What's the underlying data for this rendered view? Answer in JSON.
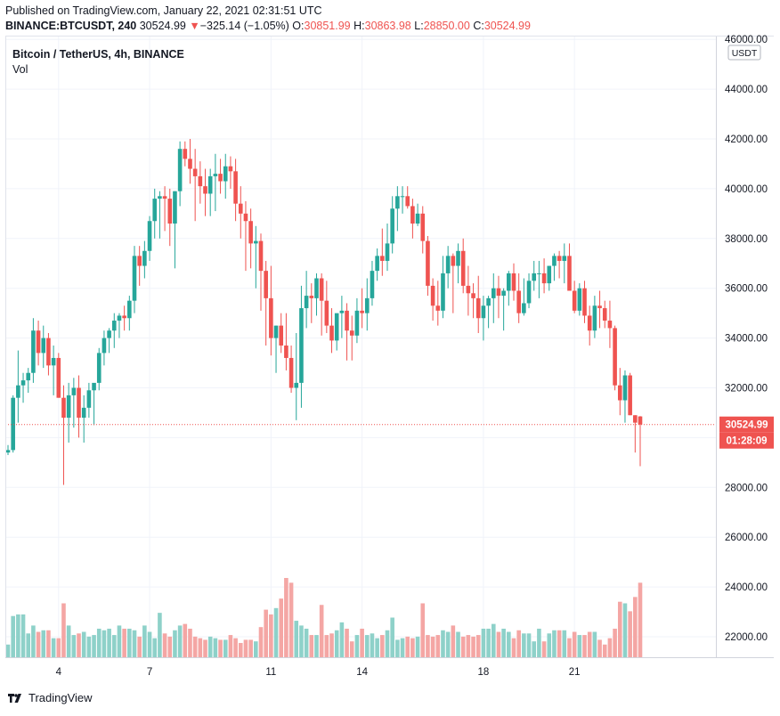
{
  "header": {
    "published": "Published on TradingView.com, January 22, 2021 02:31:51 UTC",
    "symbol": "BINANCE:BTCUSDT, 240",
    "last": "30524.99",
    "change_arrow": "▼",
    "change": "−325.14 (−1.05%)",
    "o_label": "O:",
    "o_value": "30851.99",
    "h_label": "H:",
    "h_value": "30863.98",
    "l_label": "L:",
    "l_value": "28850.00",
    "c_label": "C:",
    "c_value": "30524.99"
  },
  "legend": {
    "title": "Bitcoin / TetherUS, 4h, BINANCE",
    "vol_label": "Vol"
  },
  "price_axis": {
    "currency": "USDT",
    "last_price": "30524.99",
    "countdown": "01:28:09"
  },
  "branding": {
    "name": "TradingView",
    "logo_icon": "tradingview-logo-icon"
  },
  "colors": {
    "up": "#26a69a",
    "down": "#ef5350",
    "vol_up": "#8ed1c9",
    "vol_down": "#f4a6a4"
  },
  "chart_data": {
    "type": "candlestick",
    "symbol": "BTCUSDT",
    "interval": "4h",
    "ylim": [
      21000,
      46000
    ],
    "y_ticks": [
      22000,
      24000,
      26000,
      28000,
      30000,
      32000,
      34000,
      36000,
      38000,
      40000,
      42000,
      44000,
      46000
    ],
    "y_tick_labels": [
      "22000.00",
      "24000.00",
      "26000.00",
      "28000.00",
      "30000.00",
      "32000.00",
      "34000.00",
      "36000.00",
      "38000.00",
      "40000.00",
      "42000.00",
      "44000.00",
      "46000.00"
    ],
    "x_tick_labels": [
      {
        "label": "4",
        "candle_index": 10
      },
      {
        "label": "7",
        "candle_index": 28
      },
      {
        "label": "11",
        "candle_index": 52
      },
      {
        "label": "14",
        "candle_index": 70
      },
      {
        "label": "18",
        "candle_index": 94
      },
      {
        "label": "21",
        "candle_index": 112
      }
    ],
    "last_price": 30524.99,
    "grid": true,
    "volume_scale_max": 100,
    "candles": [
      [
        29400,
        29700,
        29300,
        29500,
        8
      ],
      [
        29500,
        31700,
        29400,
        31600,
        26
      ],
      [
        31600,
        33500,
        30600,
        32100,
        27
      ],
      [
        32100,
        32600,
        31400,
        32300,
        27
      ],
      [
        32300,
        32800,
        31800,
        32600,
        15
      ],
      [
        32600,
        34800,
        32200,
        34300,
        20
      ],
      [
        34300,
        34700,
        32900,
        33400,
        16
      ],
      [
        33400,
        34500,
        32800,
        34000,
        17
      ],
      [
        34000,
        34200,
        32500,
        32900,
        17
      ],
      [
        32900,
        33700,
        31700,
        33200,
        12
      ],
      [
        33200,
        33400,
        31600,
        31600,
        12
      ],
      [
        31600,
        32100,
        28100,
        30800,
        34
      ],
      [
        30800,
        32200,
        29800,
        31700,
        20
      ],
      [
        31700,
        32400,
        30400,
        32000,
        14
      ],
      [
        32000,
        32500,
        30000,
        30800,
        15
      ],
      [
        30800,
        31700,
        29800,
        31200,
        16
      ],
      [
        31200,
        32200,
        30800,
        31900,
        13
      ],
      [
        31900,
        32100,
        30500,
        32200,
        14
      ],
      [
        32200,
        33600,
        31900,
        33400,
        18
      ],
      [
        33400,
        34300,
        32900,
        34000,
        17
      ],
      [
        34000,
        34400,
        33400,
        34300,
        18
      ],
      [
        34300,
        35000,
        33600,
        34700,
        14
      ],
      [
        34700,
        35000,
        34000,
        34900,
        20
      ],
      [
        34900,
        35300,
        34300,
        34800,
        18
      ],
      [
        34800,
        35700,
        34300,
        35500,
        18
      ],
      [
        35500,
        37700,
        35000,
        37300,
        17
      ],
      [
        37300,
        37700,
        36100,
        36900,
        13
      ],
      [
        36900,
        37900,
        36400,
        37500,
        20
      ],
      [
        37500,
        38900,
        37100,
        38700,
        16
      ],
      [
        38700,
        40000,
        38000,
        39600,
        12
      ],
      [
        39600,
        39900,
        38000,
        39700,
        28
      ],
      [
        39700,
        40100,
        38300,
        39600,
        15
      ],
      [
        39600,
        40000,
        37700,
        38600,
        13
      ],
      [
        38600,
        39900,
        36800,
        39900,
        17
      ],
      [
        39900,
        41900,
        39300,
        41600,
        20
      ],
      [
        41600,
        41900,
        40900,
        41200,
        21
      ],
      [
        41200,
        42000,
        40200,
        40800,
        18
      ],
      [
        40800,
        41600,
        38700,
        40500,
        13
      ],
      [
        40500,
        41100,
        39400,
        40100,
        12
      ],
      [
        40100,
        40800,
        38900,
        39800,
        11
      ],
      [
        39800,
        40800,
        38900,
        40500,
        13
      ],
      [
        40500,
        41400,
        39100,
        40600,
        12
      ],
      [
        40600,
        41200,
        39800,
        40300,
        11
      ],
      [
        40300,
        41400,
        39600,
        40900,
        11
      ],
      [
        40900,
        41300,
        40000,
        40700,
        14
      ],
      [
        40700,
        41200,
        38700,
        39400,
        12
      ],
      [
        39400,
        40100,
        38000,
        39000,
        9
      ],
      [
        39000,
        39500,
        36700,
        38700,
        11
      ],
      [
        38700,
        39200,
        36800,
        37800,
        11
      ],
      [
        37800,
        38500,
        36000,
        37900,
        10
      ],
      [
        37900,
        38200,
        35100,
        36700,
        19
      ],
      [
        36700,
        37100,
        33700,
        35600,
        30
      ],
      [
        35600,
        36900,
        33300,
        34000,
        27
      ],
      [
        34000,
        34500,
        32600,
        34500,
        31
      ],
      [
        34500,
        35000,
        33400,
        33700,
        37
      ],
      [
        33700,
        35000,
        32700,
        33200,
        50
      ],
      [
        33200,
        33700,
        31800,
        32000,
        47
      ],
      [
        32000,
        34200,
        30700,
        32200,
        23
      ],
      [
        32200,
        36100,
        31200,
        35200,
        20
      ],
      [
        35200,
        36700,
        34400,
        35700,
        18
      ],
      [
        35700,
        36200,
        34600,
        35600,
        14
      ],
      [
        35600,
        36600,
        34900,
        36400,
        14
      ],
      [
        36400,
        36600,
        34100,
        35500,
        33
      ],
      [
        35500,
        36300,
        34200,
        34500,
        14
      ],
      [
        34500,
        35200,
        33400,
        33900,
        15
      ],
      [
        33900,
        34800,
        33500,
        35000,
        17
      ],
      [
        35000,
        35700,
        34000,
        35100,
        22
      ],
      [
        35100,
        35400,
        33100,
        34300,
        18
      ],
      [
        34300,
        34900,
        33100,
        34100,
        10
      ],
      [
        34100,
        35600,
        33800,
        35100,
        14
      ],
      [
        35100,
        36000,
        34400,
        35000,
        18
      ],
      [
        35000,
        36400,
        34300,
        35600,
        14
      ],
      [
        35600,
        37100,
        35300,
        36700,
        15
      ],
      [
        36700,
        37600,
        36300,
        37300,
        12
      ],
      [
        37300,
        38400,
        36500,
        37100,
        14
      ],
      [
        37100,
        38600,
        36700,
        37800,
        17
      ],
      [
        37800,
        39700,
        37400,
        39200,
        25
      ],
      [
        39200,
        40100,
        38300,
        39700,
        11
      ],
      [
        39700,
        40100,
        39000,
        39700,
        12
      ],
      [
        39700,
        40100,
        39200,
        39300,
        13
      ],
      [
        39300,
        39600,
        38000,
        38600,
        12
      ],
      [
        38600,
        39400,
        38500,
        39000,
        13
      ],
      [
        39000,
        39300,
        37400,
        37900,
        34
      ],
      [
        37900,
        38100,
        35700,
        36100,
        14
      ],
      [
        36100,
        36400,
        34700,
        35300,
        13
      ],
      [
        35300,
        36300,
        34500,
        35100,
        14
      ],
      [
        35100,
        37300,
        34800,
        36600,
        17
      ],
      [
        36600,
        37700,
        36000,
        37300,
        16
      ],
      [
        37300,
        37400,
        35000,
        36900,
        20
      ],
      [
        36900,
        37800,
        36200,
        37500,
        16
      ],
      [
        37500,
        38000,
        35800,
        36100,
        13
      ],
      [
        36100,
        36900,
        34900,
        35800,
        14
      ],
      [
        35800,
        36200,
        34800,
        35600,
        13
      ],
      [
        35600,
        36500,
        34200,
        34800,
        14
      ],
      [
        34800,
        35700,
        33900,
        35300,
        18
      ],
      [
        35300,
        35700,
        34400,
        35600,
        18
      ],
      [
        35600,
        36600,
        34600,
        36000,
        21
      ],
      [
        36000,
        36500,
        34800,
        35700,
        16
      ],
      [
        35700,
        36000,
        34300,
        35900,
        18
      ],
      [
        35900,
        36700,
        35300,
        36600,
        16
      ],
      [
        36600,
        37000,
        35500,
        35900,
        12
      ],
      [
        35900,
        36600,
        34600,
        35000,
        17
      ],
      [
        35000,
        36400,
        34900,
        35400,
        15
      ],
      [
        35400,
        36600,
        35200,
        36300,
        15
      ],
      [
        36300,
        37100,
        35900,
        36600,
        10
      ],
      [
        36600,
        37100,
        35600,
        36600,
        18
      ],
      [
        36600,
        37200,
        35800,
        36200,
        10
      ],
      [
        36200,
        36900,
        35900,
        36900,
        15
      ],
      [
        36900,
        37400,
        36300,
        37300,
        17
      ],
      [
        37300,
        37500,
        36400,
        37100,
        17
      ],
      [
        37100,
        37800,
        36200,
        37300,
        17
      ],
      [
        37300,
        37800,
        36000,
        35900,
        12
      ],
      [
        35900,
        36300,
        35000,
        35100,
        16
      ],
      [
        35100,
        36200,
        34900,
        36000,
        14
      ],
      [
        36000,
        36300,
        34600,
        34900,
        14
      ],
      [
        34900,
        35300,
        33700,
        34300,
        16
      ],
      [
        34300,
        35700,
        34000,
        35300,
        16
      ],
      [
        35300,
        35900,
        34400,
        35200,
        11
      ],
      [
        35200,
        35500,
        34400,
        34700,
        8
      ],
      [
        34700,
        35500,
        33600,
        34400,
        12
      ],
      [
        34400,
        34500,
        31900,
        32100,
        18
      ],
      [
        32100,
        32800,
        30900,
        31500,
        35
      ],
      [
        31500,
        32700,
        30600,
        32500,
        34
      ],
      [
        32500,
        32600,
        30900,
        30900,
        29
      ],
      [
        30900,
        30900,
        29400,
        30600,
        38
      ],
      [
        30851.99,
        30863.98,
        28850,
        30524.99,
        47
      ]
    ]
  }
}
